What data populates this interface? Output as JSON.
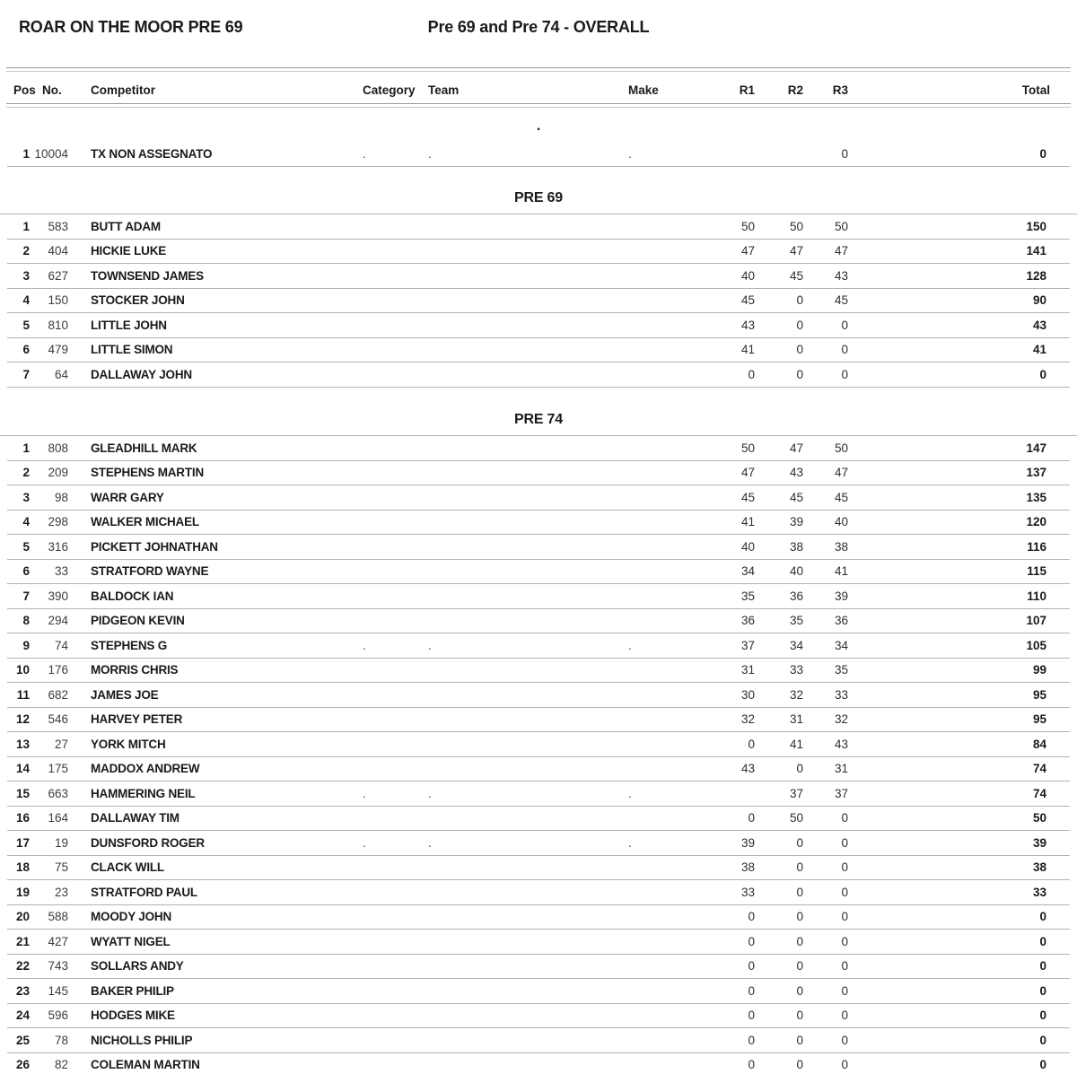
{
  "header": {
    "event_title": "ROAR ON THE MOOR PRE 69",
    "report_title": "Pre 69 and Pre 74 - OVERALL"
  },
  "colors": {
    "text": "#1a1a1a",
    "row_line": "#b3b3b3",
    "header_rule": "#9b9b9b"
  },
  "table": {
    "columns": [
      "Pos",
      "No.",
      "Competitor",
      "Category",
      "Team",
      "Make",
      "R1",
      "R2",
      "R3",
      "Total"
    ],
    "sections": [
      {
        "name": ".",
        "rows": [
          {
            "pos": "1",
            "no": "10004",
            "competitor": "TX NON ASSEGNATO",
            "category": ".",
            "team": ".",
            "make": ".",
            "r1": "",
            "r2": "",
            "r3": "0",
            "total": "0"
          }
        ]
      },
      {
        "name": "PRE 69",
        "rows": [
          {
            "pos": "1",
            "no": "583",
            "competitor": "BUTT ADAM",
            "category": "",
            "team": "",
            "make": "",
            "r1": "50",
            "r2": "50",
            "r3": "50",
            "total": "150"
          },
          {
            "pos": "2",
            "no": "404",
            "competitor": "HICKIE LUKE",
            "category": "",
            "team": "",
            "make": "",
            "r1": "47",
            "r2": "47",
            "r3": "47",
            "total": "141"
          },
          {
            "pos": "3",
            "no": "627",
            "competitor": "TOWNSEND JAMES",
            "category": "",
            "team": "",
            "make": "",
            "r1": "40",
            "r2": "45",
            "r3": "43",
            "total": "128"
          },
          {
            "pos": "4",
            "no": "150",
            "competitor": "STOCKER JOHN",
            "category": "",
            "team": "",
            "make": "",
            "r1": "45",
            "r2": "0",
            "r3": "45",
            "total": "90"
          },
          {
            "pos": "5",
            "no": "810",
            "competitor": "LITTLE JOHN",
            "category": "",
            "team": "",
            "make": "",
            "r1": "43",
            "r2": "0",
            "r3": "0",
            "total": "43"
          },
          {
            "pos": "6",
            "no": "479",
            "competitor": "LITTLE SIMON",
            "category": "",
            "team": "",
            "make": "",
            "r1": "41",
            "r2": "0",
            "r3": "0",
            "total": "41"
          },
          {
            "pos": "7",
            "no": "64",
            "competitor": "DALLAWAY JOHN",
            "category": "",
            "team": "",
            "make": "",
            "r1": "0",
            "r2": "0",
            "r3": "0",
            "total": "0"
          }
        ]
      },
      {
        "name": "PRE 74",
        "rows": [
          {
            "pos": "1",
            "no": "808",
            "competitor": "GLEADHILL MARK",
            "category": "",
            "team": "",
            "make": "",
            "r1": "50",
            "r2": "47",
            "r3": "50",
            "total": "147"
          },
          {
            "pos": "2",
            "no": "209",
            "competitor": "STEPHENS MARTIN",
            "category": "",
            "team": "",
            "make": "",
            "r1": "47",
            "r2": "43",
            "r3": "47",
            "total": "137"
          },
          {
            "pos": "3",
            "no": "98",
            "competitor": "WARR GARY",
            "category": "",
            "team": "",
            "make": "",
            "r1": "45",
            "r2": "45",
            "r3": "45",
            "total": "135"
          },
          {
            "pos": "4",
            "no": "298",
            "competitor": "WALKER MICHAEL",
            "category": "",
            "team": "",
            "make": "",
            "r1": "41",
            "r2": "39",
            "r3": "40",
            "total": "120"
          },
          {
            "pos": "5",
            "no": "316",
            "competitor": "PICKETT JOHNATHAN",
            "category": "",
            "team": "",
            "make": "",
            "r1": "40",
            "r2": "38",
            "r3": "38",
            "total": "116"
          },
          {
            "pos": "6",
            "no": "33",
            "competitor": "STRATFORD WAYNE",
            "category": "",
            "team": "",
            "make": "",
            "r1": "34",
            "r2": "40",
            "r3": "41",
            "total": "115"
          },
          {
            "pos": "7",
            "no": "390",
            "competitor": "BALDOCK IAN",
            "category": "",
            "team": "",
            "make": "",
            "r1": "35",
            "r2": "36",
            "r3": "39",
            "total": "110"
          },
          {
            "pos": "8",
            "no": "294",
            "competitor": "PIDGEON KEVIN",
            "category": "",
            "team": "",
            "make": "",
            "r1": "36",
            "r2": "35",
            "r3": "36",
            "total": "107"
          },
          {
            "pos": "9",
            "no": "74",
            "competitor": "STEPHENS G",
            "category": ".",
            "team": ".",
            "make": ".",
            "r1": "37",
            "r2": "34",
            "r3": "34",
            "total": "105"
          },
          {
            "pos": "10",
            "no": "176",
            "competitor": "MORRIS CHRIS",
            "category": "",
            "team": "",
            "make": "",
            "r1": "31",
            "r2": "33",
            "r3": "35",
            "total": "99"
          },
          {
            "pos": "11",
            "no": "682",
            "competitor": "JAMES JOE",
            "category": "",
            "team": "",
            "make": "",
            "r1": "30",
            "r2": "32",
            "r3": "33",
            "total": "95"
          },
          {
            "pos": "12",
            "no": "546",
            "competitor": "HARVEY PETER",
            "category": "",
            "team": "",
            "make": "",
            "r1": "32",
            "r2": "31",
            "r3": "32",
            "total": "95"
          },
          {
            "pos": "13",
            "no": "27",
            "competitor": "YORK MITCH",
            "category": "",
            "team": "",
            "make": "",
            "r1": "0",
            "r2": "41",
            "r3": "43",
            "total": "84"
          },
          {
            "pos": "14",
            "no": "175",
            "competitor": "MADDOX ANDREW",
            "category": "",
            "team": "",
            "make": "",
            "r1": "43",
            "r2": "0",
            "r3": "31",
            "total": "74"
          },
          {
            "pos": "15",
            "no": "663",
            "competitor": "HAMMERING NEIL",
            "category": ".",
            "team": ".",
            "make": ".",
            "r1": "",
            "r2": "37",
            "r3": "37",
            "total": "74"
          },
          {
            "pos": "16",
            "no": "164",
            "competitor": "DALLAWAY TIM",
            "category": "",
            "team": "",
            "make": "",
            "r1": "0",
            "r2": "50",
            "r3": "0",
            "total": "50"
          },
          {
            "pos": "17",
            "no": "19",
            "competitor": "DUNSFORD ROGER",
            "category": ".",
            "team": ".",
            "make": ".",
            "r1": "39",
            "r2": "0",
            "r3": "0",
            "total": "39"
          },
          {
            "pos": "18",
            "no": "75",
            "competitor": "CLACK WILL",
            "category": "",
            "team": "",
            "make": "",
            "r1": "38",
            "r2": "0",
            "r3": "0",
            "total": "38"
          },
          {
            "pos": "19",
            "no": "23",
            "competitor": "STRATFORD PAUL",
            "category": "",
            "team": "",
            "make": "",
            "r1": "33",
            "r2": "0",
            "r3": "0",
            "total": "33"
          },
          {
            "pos": "20",
            "no": "588",
            "competitor": "MOODY JOHN",
            "category": "",
            "team": "",
            "make": "",
            "r1": "0",
            "r2": "0",
            "r3": "0",
            "total": "0"
          },
          {
            "pos": "21",
            "no": "427",
            "competitor": "WYATT NIGEL",
            "category": "",
            "team": "",
            "make": "",
            "r1": "0",
            "r2": "0",
            "r3": "0",
            "total": "0"
          },
          {
            "pos": "22",
            "no": "743",
            "competitor": "SOLLARS ANDY",
            "category": "",
            "team": "",
            "make": "",
            "r1": "0",
            "r2": "0",
            "r3": "0",
            "total": "0"
          },
          {
            "pos": "23",
            "no": "145",
            "competitor": "BAKER PHILIP",
            "category": "",
            "team": "",
            "make": "",
            "r1": "0",
            "r2": "0",
            "r3": "0",
            "total": "0"
          },
          {
            "pos": "24",
            "no": "596",
            "competitor": "HODGES MIKE",
            "category": "",
            "team": "",
            "make": "",
            "r1": "0",
            "r2": "0",
            "r3": "0",
            "total": "0"
          },
          {
            "pos": "25",
            "no": "78",
            "competitor": "NICHOLLS PHILIP",
            "category": "",
            "team": "",
            "make": "",
            "r1": "0",
            "r2": "0",
            "r3": "0",
            "total": "0"
          },
          {
            "pos": "26",
            "no": "82",
            "competitor": "COLEMAN MARTIN",
            "category": "",
            "team": "",
            "make": "",
            "r1": "0",
            "r2": "0",
            "r3": "0",
            "total": "0"
          }
        ]
      }
    ]
  }
}
